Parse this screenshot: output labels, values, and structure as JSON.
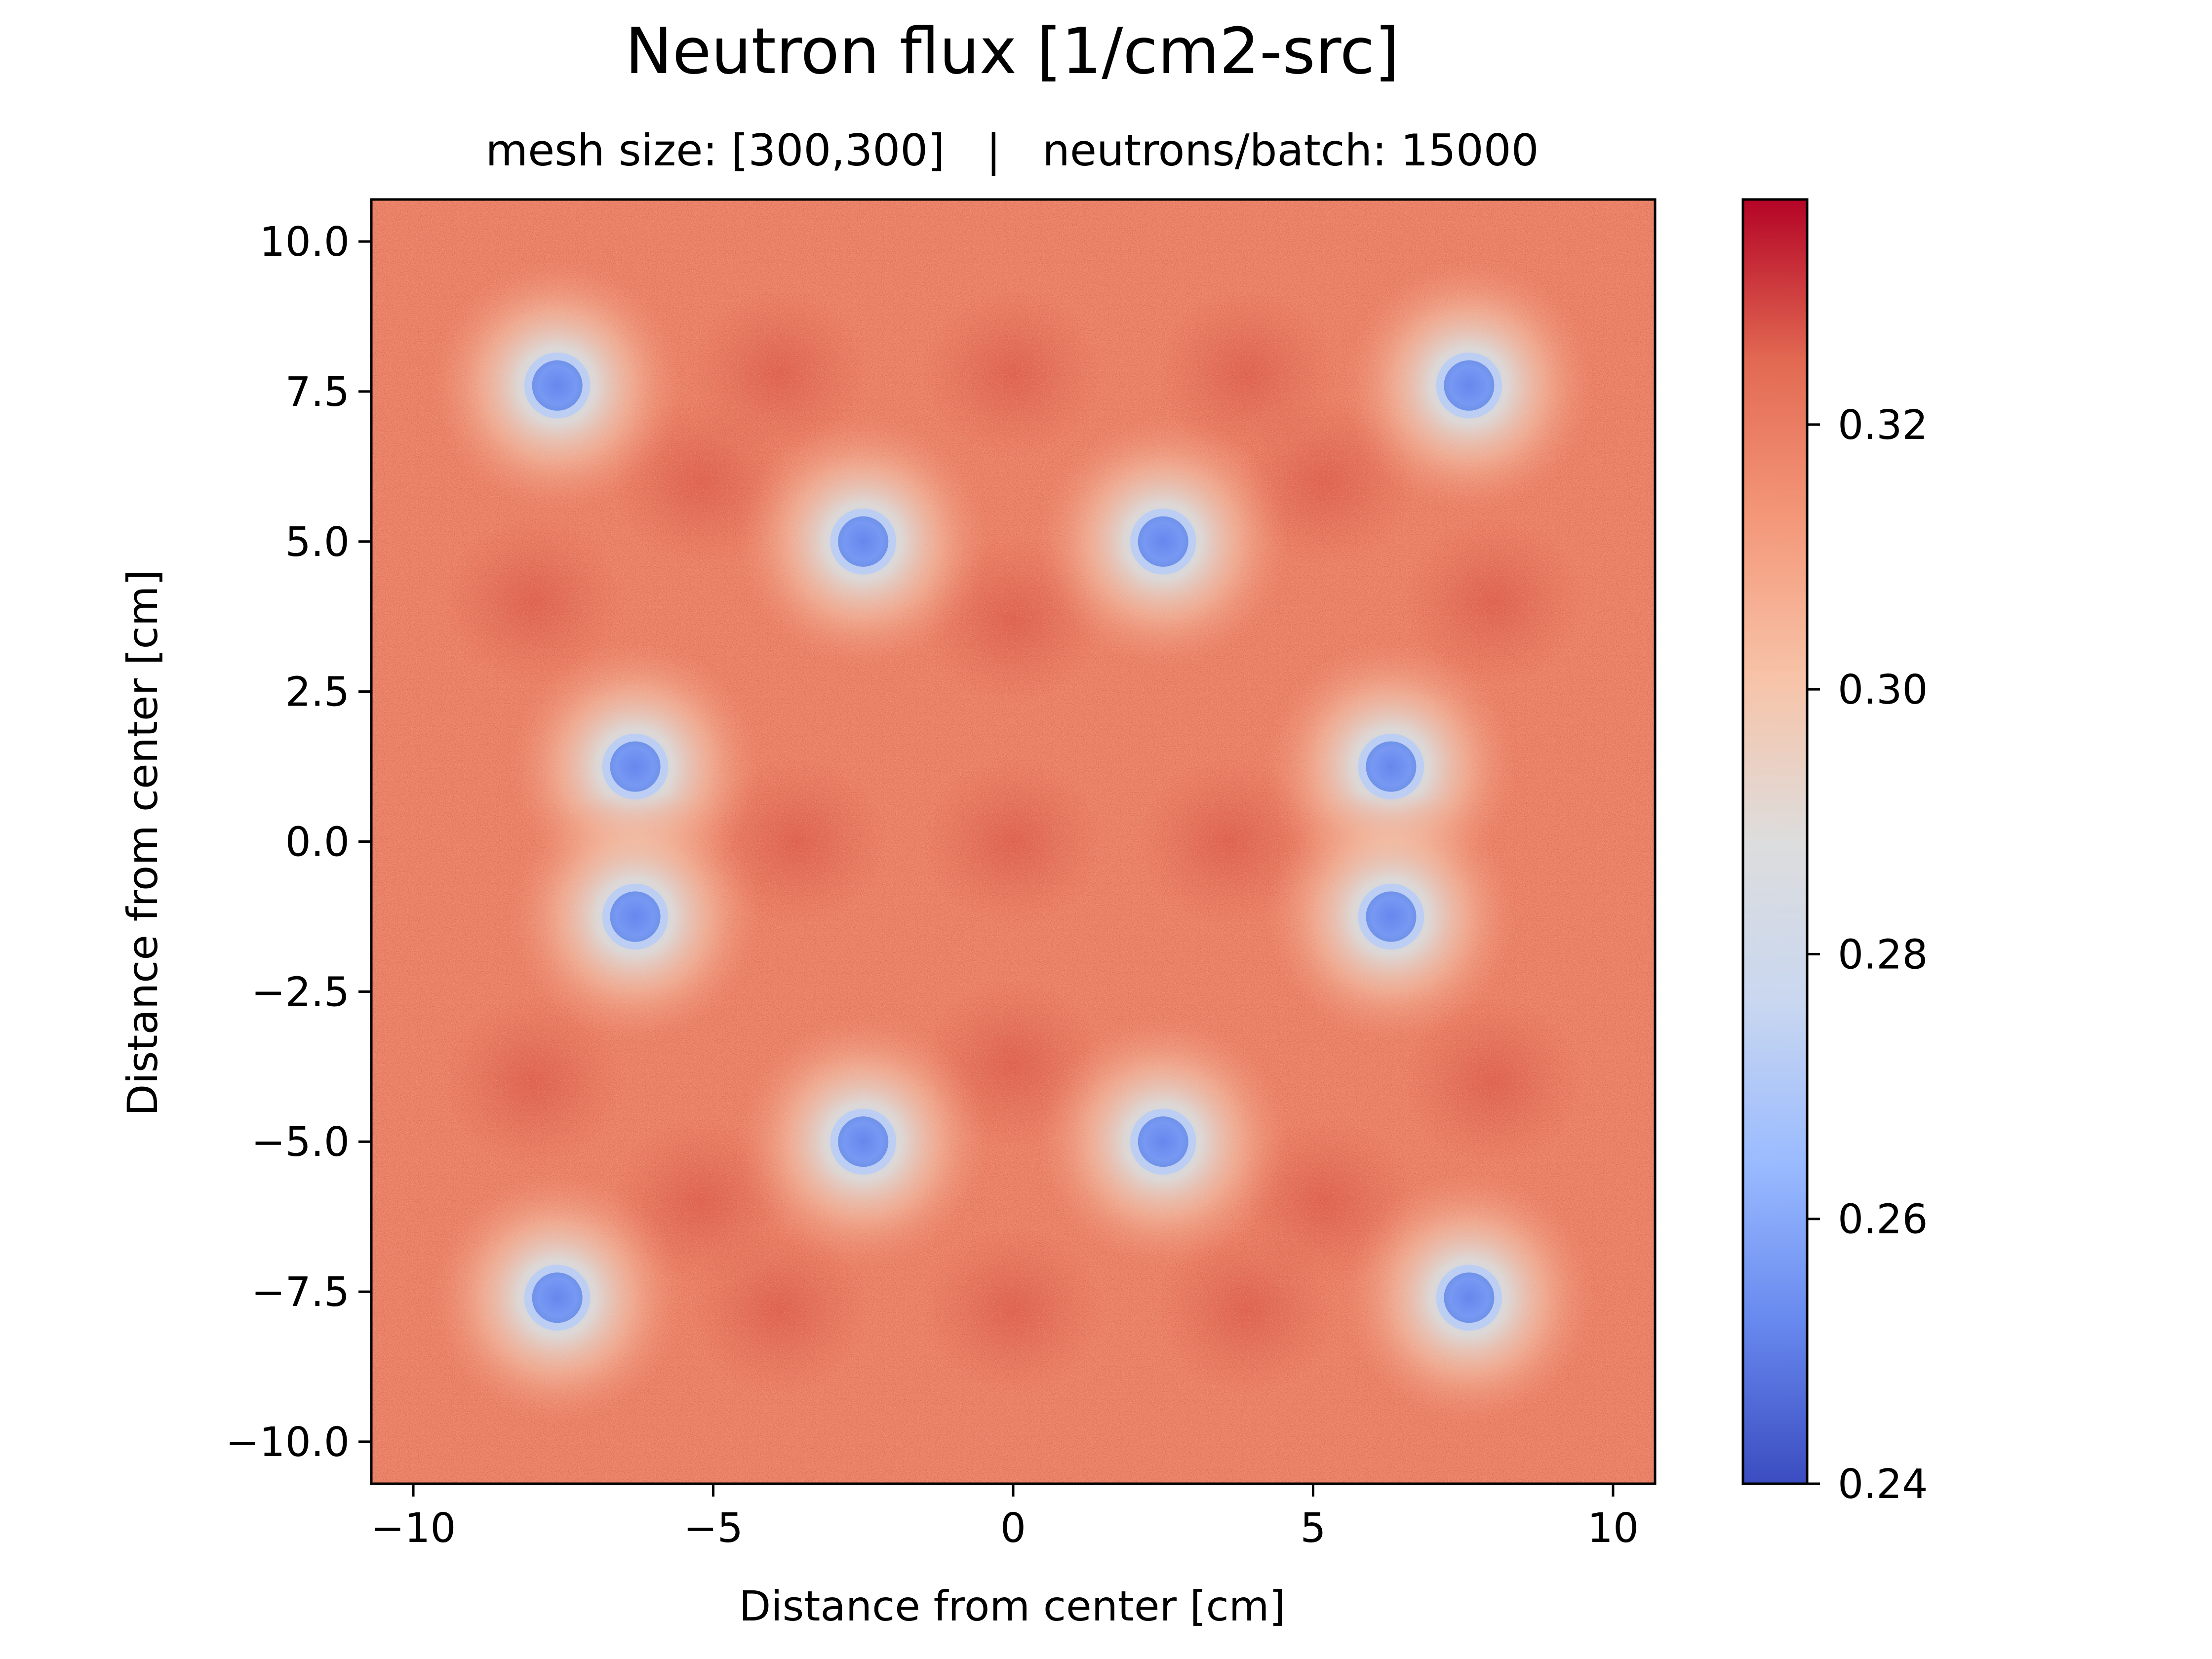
{
  "chart_data": {
    "type": "heatmap",
    "title": "Neutron flux [1/cm2-src]",
    "subtitle": "mesh size: [300,300]   |   neutrons/batch: 15000",
    "xlabel": "Distance from center [cm]",
    "ylabel": "Distance from center [cm]",
    "xlim": [
      -10.7,
      10.7
    ],
    "ylim": [
      -10.7,
      10.7
    ],
    "xticks": [
      {
        "value": -10,
        "label": "−10"
      },
      {
        "value": -5,
        "label": "−5"
      },
      {
        "value": 0,
        "label": "0"
      },
      {
        "value": 5,
        "label": "5"
      },
      {
        "value": 10,
        "label": "10"
      }
    ],
    "yticks": [
      {
        "value": 10,
        "label": "10.0"
      },
      {
        "value": 7.5,
        "label": "7.5"
      },
      {
        "value": 5,
        "label": "5.0"
      },
      {
        "value": 2.5,
        "label": "2.5"
      },
      {
        "value": 0,
        "label": "0.0"
      },
      {
        "value": -2.5,
        "label": "−2.5"
      },
      {
        "value": -5,
        "label": "−5.0"
      },
      {
        "value": -7.5,
        "label": "−7.5"
      },
      {
        "value": -10,
        "label": "−10.0"
      }
    ],
    "colormap": "coolwarm",
    "colormap_stops": [
      "#3b4cc0",
      "#6788ee",
      "#9abbff",
      "#c9d7f0",
      "#dddddd",
      "#f7c4a9",
      "#f4987a",
      "#e26952",
      "#b40426"
    ],
    "colorbar": {
      "vmin": 0.24,
      "vmax": 0.337,
      "ticks": [
        {
          "value": 0.24,
          "label": "0.24"
        },
        {
          "value": 0.26,
          "label": "0.26"
        },
        {
          "value": 0.28,
          "label": "0.28"
        },
        {
          "value": 0.3,
          "label": "0.30"
        },
        {
          "value": 0.32,
          "label": "0.32"
        }
      ]
    },
    "background_value": 0.318,
    "hotspot_value": 0.326,
    "absorbers": [
      {
        "x": -7.6,
        "y": 7.6,
        "value": 0.252
      },
      {
        "x": 7.6,
        "y": 7.6,
        "value": 0.252
      },
      {
        "x": -2.5,
        "y": 5.0,
        "value": 0.252
      },
      {
        "x": 2.5,
        "y": 5.0,
        "value": 0.252
      },
      {
        "x": -6.3,
        "y": 1.25,
        "value": 0.252
      },
      {
        "x": 6.3,
        "y": 1.25,
        "value": 0.252
      },
      {
        "x": -6.3,
        "y": -1.25,
        "value": 0.252
      },
      {
        "x": 6.3,
        "y": -1.25,
        "value": 0.252
      },
      {
        "x": -2.5,
        "y": -5.0,
        "value": 0.252
      },
      {
        "x": 2.5,
        "y": -5.0,
        "value": 0.252
      },
      {
        "x": -7.6,
        "y": -7.6,
        "value": 0.252
      },
      {
        "x": 7.6,
        "y": -7.6,
        "value": 0.252
      }
    ],
    "hotspots": [
      {
        "x": 0,
        "y": 7.8
      },
      {
        "x": -3.9,
        "y": 7.8
      },
      {
        "x": 3.9,
        "y": 7.8
      },
      {
        "x": 0,
        "y": -7.8
      },
      {
        "x": -3.9,
        "y": -7.8
      },
      {
        "x": 3.9,
        "y": -7.8
      },
      {
        "x": -8.0,
        "y": 4.0
      },
      {
        "x": 8.0,
        "y": 4.0
      },
      {
        "x": -8.0,
        "y": -4.0
      },
      {
        "x": 8.0,
        "y": -4.0
      },
      {
        "x": 0,
        "y": 3.7
      },
      {
        "x": 0,
        "y": -3.7
      },
      {
        "x": -3.6,
        "y": 0
      },
      {
        "x": 3.6,
        "y": 0
      },
      {
        "x": 0,
        "y": 0
      },
      {
        "x": -5.2,
        "y": 6.0
      },
      {
        "x": 5.2,
        "y": 6.0
      },
      {
        "x": -5.2,
        "y": -6.0
      },
      {
        "x": 5.2,
        "y": -6.0
      }
    ]
  }
}
